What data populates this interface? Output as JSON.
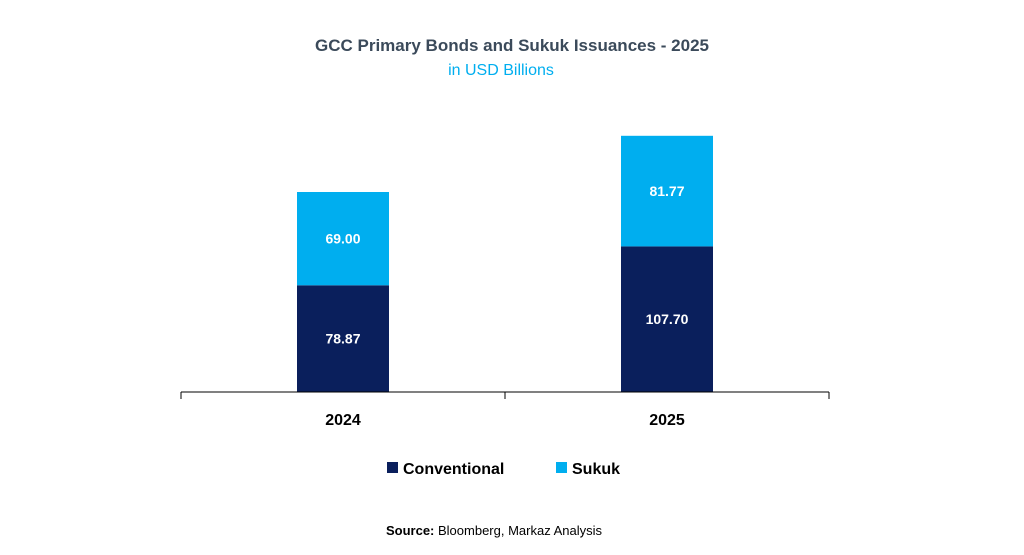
{
  "chart_data": {
    "type": "bar",
    "stacked": true,
    "title": "GCC Primary Bonds and Sukuk Issuances - 2025",
    "subtitle": "in USD Billions",
    "categories": [
      "2024",
      "2025"
    ],
    "series": [
      {
        "name": "Conventional",
        "values": [
          78.87,
          107.7
        ],
        "labels": [
          "78.87",
          "107.70"
        ],
        "color": "#0a1f5c"
      },
      {
        "name": "Sukuk",
        "values": [
          69.0,
          81.77
        ],
        "labels": [
          "69.00",
          "81.77"
        ],
        "color": "#00aeef"
      }
    ],
    "ylim": [
      0,
      200
    ],
    "grid": false,
    "legend_position": "bottom"
  },
  "colors": {
    "title": "#3b4a5a",
    "subtitle": "#00aeef",
    "axis": "#000000"
  },
  "source": {
    "label": "Source:",
    "text": " Bloomberg, Markaz Analysis"
  }
}
